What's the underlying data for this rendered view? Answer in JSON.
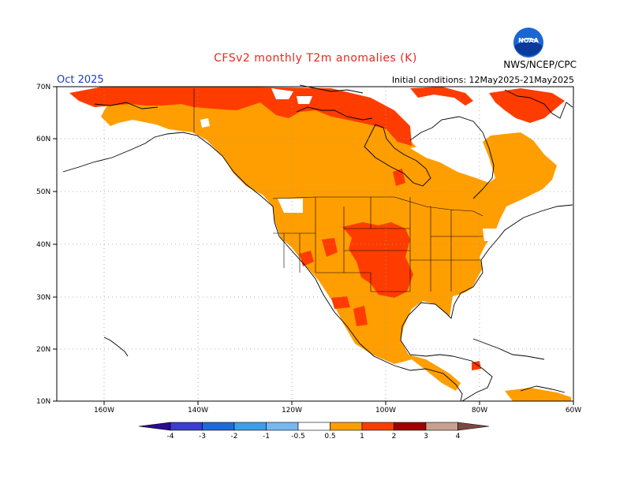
{
  "header": {
    "title": "CFSv2 monthly T2m anomalies (K)",
    "month": "Oct 2025",
    "initial_conditions": "Initial conditions: 12May2025-21May2025",
    "agency": "NWS/NCEP/CPC",
    "logo_text": "NOAA"
  },
  "axes": {
    "lat_labels": [
      "70N",
      "60N",
      "50N",
      "40N",
      "30N",
      "20N",
      "10N"
    ],
    "lon_labels": [
      "160W",
      "140W",
      "120W",
      "100W",
      "80W",
      "60W"
    ]
  },
  "legend": {
    "levels": [
      "-4",
      "-3",
      "-2",
      "-1",
      "-0.5",
      "0.5",
      "1",
      "2",
      "3",
      "4"
    ],
    "colors": [
      "#2a0c8e",
      "#3c3cd0",
      "#1e6ad6",
      "#3f9ee6",
      "#78b8f0",
      "#ffffff",
      "#ff9e00",
      "#ff3c00",
      "#a00000",
      "#c8a090",
      "#7a4a40"
    ]
  },
  "colors": {
    "anomaly_05_1": "#ff9e00",
    "anomaly_1_2": "#ff3c00",
    "gridline": "#999999",
    "title": "#e8281e",
    "month": "#1e3cc8"
  }
}
